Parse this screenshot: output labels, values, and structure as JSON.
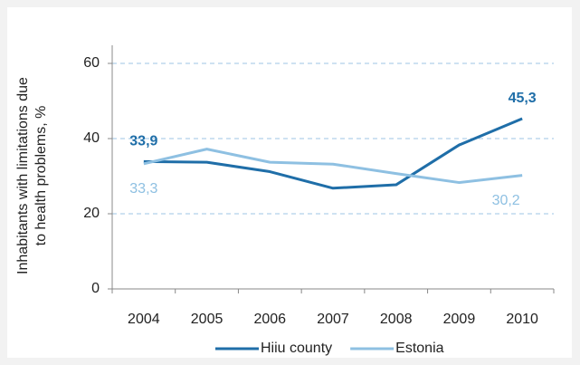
{
  "chart_data": {
    "type": "line",
    "ylabel": [
      "Inhabitants with limitations due",
      "to health problems, %"
    ],
    "categories": [
      "2004",
      "2005",
      "2006",
      "2007",
      "2008",
      "2009",
      "2010"
    ],
    "series": [
      {
        "name": "Hiiu county",
        "color": "#1f6ea8",
        "values": [
          33.9,
          33.7,
          31.2,
          26.8,
          27.7,
          38.3,
          45.3
        ],
        "value_labels": [
          "33,9",
          null,
          null,
          null,
          null,
          null,
          "45,3"
        ]
      },
      {
        "name": "Estonia",
        "color": "#8ec0e2",
        "values": [
          33.3,
          37.2,
          33.7,
          33.2,
          30.7,
          28.3,
          30.2
        ],
        "value_labels": [
          "33,3",
          null,
          null,
          null,
          null,
          null,
          "30,2"
        ]
      }
    ],
    "ylim": [
      0,
      60
    ],
    "yticks": [
      0,
      20,
      40,
      60
    ],
    "grid": true,
    "legend": "bottom"
  }
}
